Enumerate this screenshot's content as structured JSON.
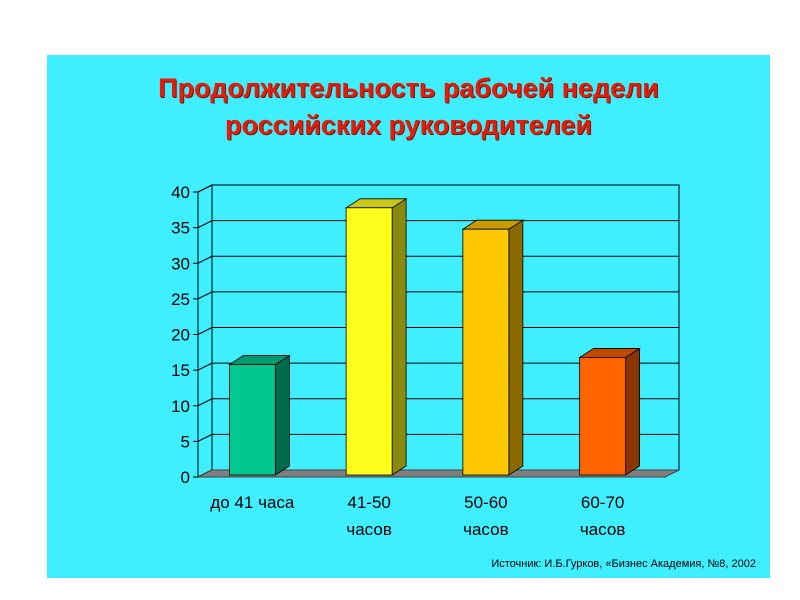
{
  "title_line1": "Продолжительность рабочей недели",
  "title_line2": "российских руководителей",
  "source": "Источник: И.Б.Гурков, «Бизнес Академия, №8, 2002",
  "chart_data": {
    "type": "bar",
    "title": "Продолжительность рабочей недели российских руководителей",
    "categories": [
      [
        "до 41 часа"
      ],
      [
        "41-50",
        "часов"
      ],
      [
        "50-60",
        "часов"
      ],
      [
        "60-70",
        "часов"
      ]
    ],
    "values": [
      15.5,
      37.5,
      34.5,
      16.5
    ],
    "ylim": [
      0,
      40
    ],
    "yticks": [
      "0",
      "5",
      "10",
      "15",
      "20",
      "25",
      "30",
      "35",
      "40"
    ],
    "grid": true,
    "colors": [
      {
        "front": "#00c890",
        "side": "#006a4c",
        "top": "#009a6e"
      },
      {
        "front": "#ffff1e",
        "side": "#8a8a10",
        "top": "#c8c818"
      },
      {
        "front": "#ffc800",
        "side": "#8a6a00",
        "top": "#c89c00"
      },
      {
        "front": "#ff6400",
        "side": "#8a3600",
        "top": "#c04a00"
      }
    ],
    "background": "#3fefff"
  }
}
